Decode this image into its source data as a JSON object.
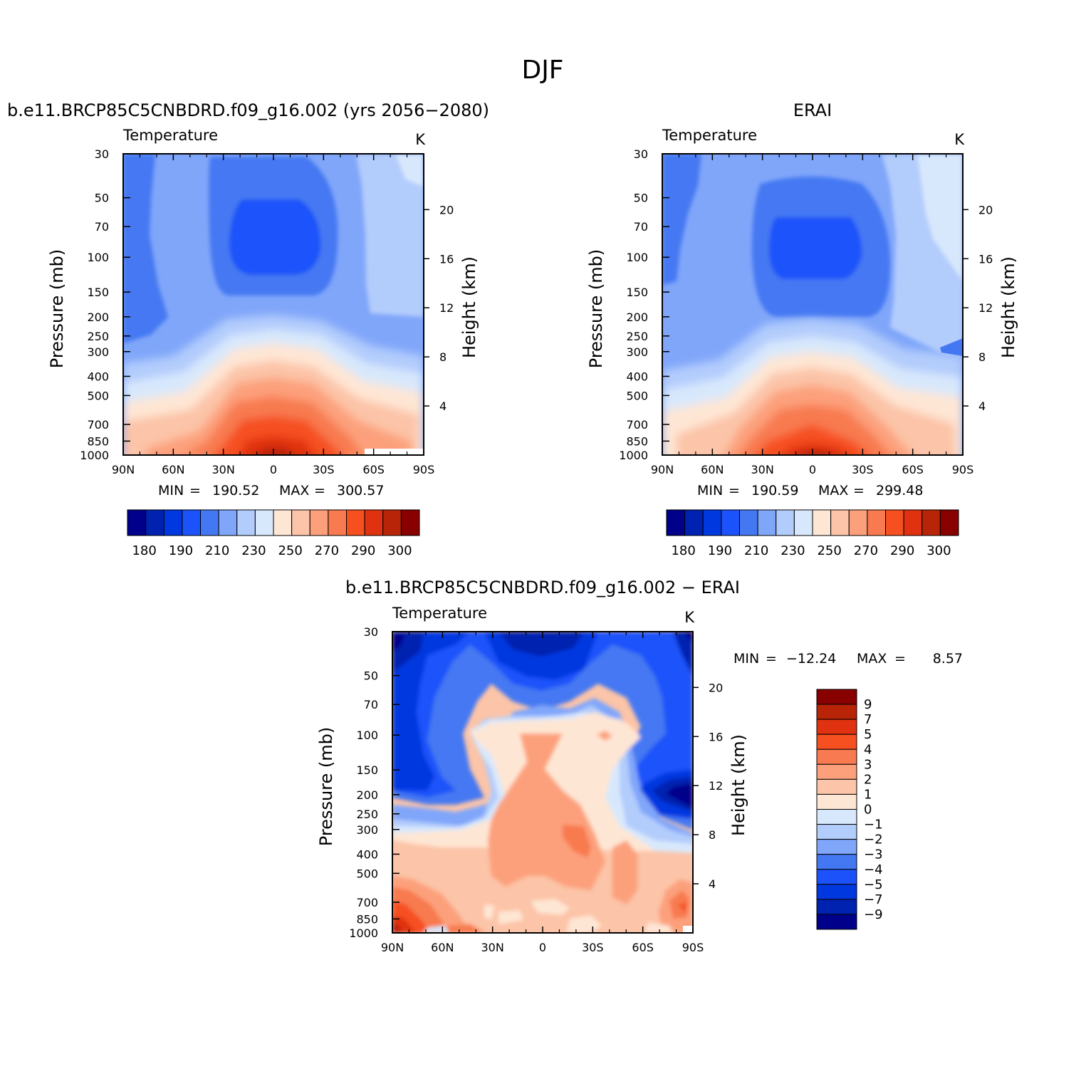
{
  "figure": {
    "title": "DJF"
  },
  "palettes": {
    "abs": [
      "#00008a",
      "#0022b0",
      "#0038e0",
      "#1c52fa",
      "#4478f2",
      "#80a6fa",
      "#b2ccfc",
      "#d8e8fc",
      "#fee6d4",
      "#fcc4a8",
      "#fca07c",
      "#f87a50",
      "#f65020",
      "#e03210",
      "#b82408",
      "#880000"
    ],
    "diff": [
      "#00008a",
      "#0022b0",
      "#0038e0",
      "#1c52fa",
      "#4478f2",
      "#80a6fa",
      "#b2ccfc",
      "#d8e8fc",
      "#fee6d4",
      "#fcc4a8",
      "#fca07c",
      "#f87a50",
      "#f65020",
      "#e03210",
      "#b82408",
      "#880000"
    ]
  },
  "chart_data": [
    {
      "type": "heatmap",
      "title": "b.e11.BRCP85C5CNBDRD.f09_g16.002 (yrs 2056−2080)",
      "left_label": "Temperature",
      "right_label": "K",
      "ylabel": "Pressure (mb)",
      "ylabel2": "Height (km)",
      "x_ticks": [
        "90N",
        "60N",
        "30N",
        "0",
        "30S",
        "60S",
        "90S"
      ],
      "y_ticks": [
        "30",
        "50",
        "70",
        "100",
        "150",
        "200",
        "250",
        "300",
        "400",
        "500",
        "700",
        "850",
        "1000"
      ],
      "height_ticks": [
        "20",
        "16",
        "12",
        "8",
        "4"
      ],
      "stats": {
        "min_label": "MIN",
        "min": "190.52",
        "max_label": "MAX",
        "max": "300.57"
      },
      "colorbar": {
        "labels": [
          "180",
          "190",
          "210",
          "230",
          "250",
          "270",
          "290",
          "300"
        ]
      }
    },
    {
      "type": "heatmap",
      "title": "ERAI",
      "left_label": "Temperature",
      "right_label": "K",
      "ylabel": "Pressure (mb)",
      "ylabel2": "Height (km)",
      "x_ticks": [
        "90N",
        "60N",
        "30N",
        "0",
        "30S",
        "60S",
        "90S"
      ],
      "y_ticks": [
        "30",
        "50",
        "70",
        "100",
        "150",
        "200",
        "250",
        "300",
        "400",
        "500",
        "700",
        "850",
        "1000"
      ],
      "height_ticks": [
        "20",
        "16",
        "12",
        "8",
        "4"
      ],
      "stats": {
        "min_label": "MIN",
        "min": "190.59",
        "max_label": "MAX",
        "max": "299.48"
      },
      "colorbar": {
        "labels": [
          "180",
          "190",
          "210",
          "230",
          "250",
          "270",
          "290",
          "300"
        ]
      }
    },
    {
      "type": "heatmap",
      "title": "b.e11.BRCP85C5CNBDRD.f09_g16.002 − ERAI",
      "left_label": "Temperature",
      "right_label": "K",
      "ylabel": "Pressure (mb)",
      "ylabel2": "Height (km)",
      "x_ticks": [
        "90N",
        "60N",
        "30N",
        "0",
        "30S",
        "60S",
        "90S"
      ],
      "y_ticks": [
        "30",
        "50",
        "70",
        "100",
        "150",
        "200",
        "250",
        "300",
        "400",
        "500",
        "700",
        "850",
        "1000"
      ],
      "height_ticks": [
        "20",
        "16",
        "12",
        "8",
        "4"
      ],
      "stats": {
        "min_label": "MIN",
        "min": "−12.24",
        "max_label": "MAX",
        "max": "8.57"
      },
      "colorbar": {
        "labels": [
          "9",
          "7",
          "5",
          "4",
          "3",
          "2",
          "1",
          "0",
          "−1",
          "−2",
          "−3",
          "−4",
          "−5",
          "−7",
          "−9"
        ]
      }
    }
  ]
}
